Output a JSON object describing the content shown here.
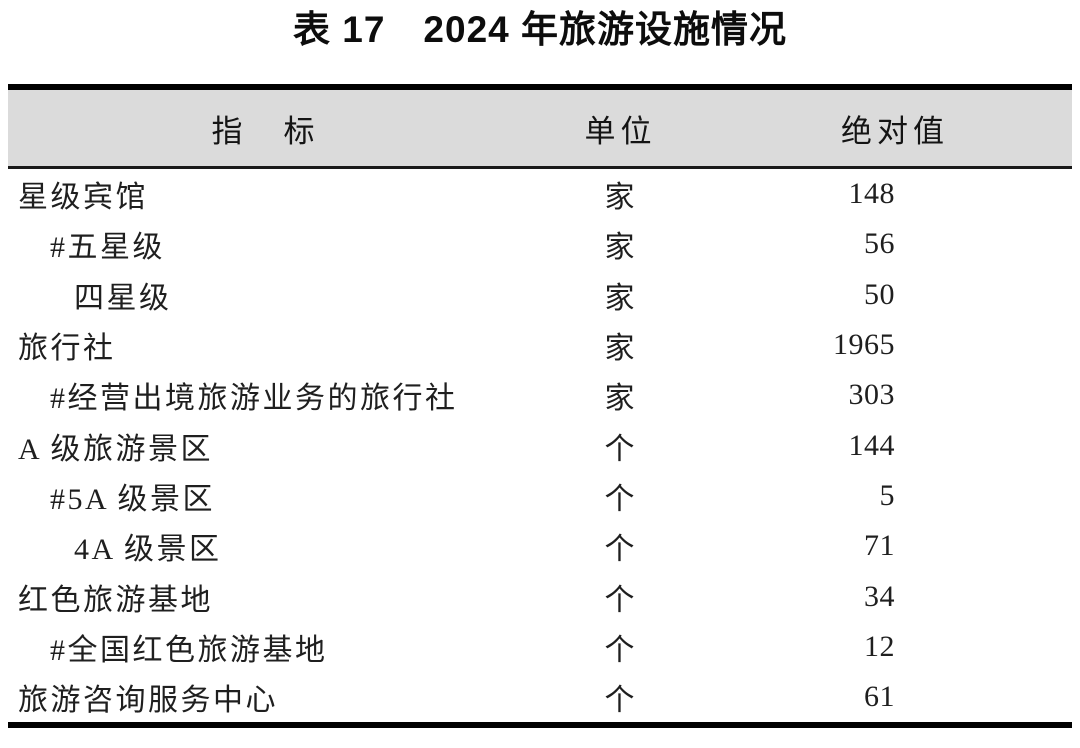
{
  "title": "表 17　2024 年旅游设施情况",
  "table": {
    "columns": [
      {
        "label": "指　标"
      },
      {
        "label": "单位"
      },
      {
        "label": "绝对值"
      }
    ],
    "rows": [
      {
        "indicator": "星级宾馆",
        "unit": "家",
        "value": "148",
        "indent": 0
      },
      {
        "indicator": "#五星级",
        "unit": "家",
        "value": "56",
        "indent": 1
      },
      {
        "indicator": "四星级",
        "unit": "家",
        "value": "50",
        "indent": 2
      },
      {
        "indicator": "旅行社",
        "unit": "家",
        "value": "1965",
        "indent": 0
      },
      {
        "indicator": "#经营出境旅游业务的旅行社",
        "unit": "家",
        "value": "303",
        "indent": 1
      },
      {
        "indicator": "A 级旅游景区",
        "unit": "个",
        "value": "144",
        "indent": 0
      },
      {
        "indicator": "#5A 级景区",
        "unit": "个",
        "value": "5",
        "indent": 1
      },
      {
        "indicator": "4A 级景区",
        "unit": "个",
        "value": "71",
        "indent": 2
      },
      {
        "indicator": "红色旅游基地",
        "unit": "个",
        "value": "34",
        "indent": 0
      },
      {
        "indicator": "#全国红色旅游基地",
        "unit": "个",
        "value": "12",
        "indent": 1
      },
      {
        "indicator": "旅游咨询服务中心",
        "unit": "个",
        "value": "61",
        "indent": 0
      }
    ]
  },
  "chart_data": {
    "type": "table",
    "title": "表 17　2024 年旅游设施情况",
    "columns": [
      "指　标",
      "单位",
      "绝对值"
    ],
    "rows": [
      [
        "星级宾馆",
        "家",
        148
      ],
      [
        "#五星级",
        "家",
        56
      ],
      [
        "四星级",
        "家",
        50
      ],
      [
        "旅行社",
        "家",
        1965
      ],
      [
        "#经营出境旅游业务的旅行社",
        "家",
        303
      ],
      [
        "A 级旅游景区",
        "个",
        144
      ],
      [
        "#5A 级景区",
        "个",
        5
      ],
      [
        "4A 级景区",
        "个",
        71
      ],
      [
        "红色旅游基地",
        "个",
        34
      ],
      [
        "#全国红色旅游基地",
        "个",
        12
      ],
      [
        "旅游咨询服务中心",
        "个",
        61
      ]
    ]
  },
  "colors": {
    "header_bg": "#dbdbdb",
    "border": "#000000",
    "text": "#1c1c1c",
    "background": "#ffffff"
  }
}
